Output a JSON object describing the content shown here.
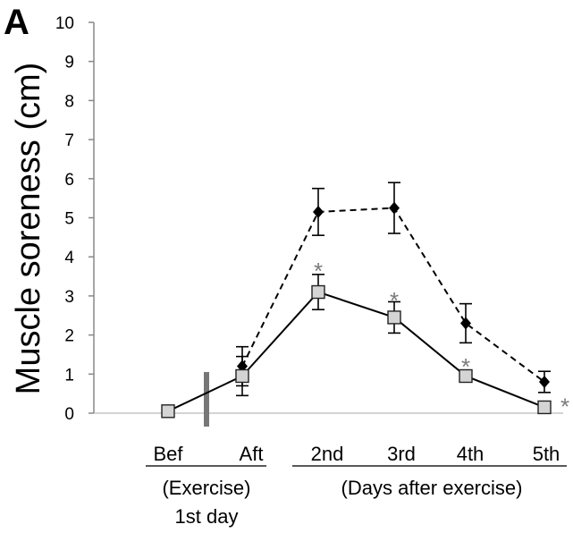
{
  "chart_data": {
    "type": "line",
    "panel_label": "A",
    "ylabel": "Muscle soreness (cm)",
    "ylim": [
      0,
      10
    ],
    "yticks": [
      "0",
      "1",
      "2",
      "3",
      "4",
      "5",
      "6",
      "7",
      "8",
      "9",
      "10"
    ],
    "categories": [
      "Bef",
      "Aft",
      "2nd",
      "3rd",
      "4th",
      "5th"
    ],
    "groups": [
      {
        "lines": [
          "(Exercise)",
          "1st day"
        ],
        "categories": [
          "Bef",
          "Aft"
        ]
      },
      {
        "lines": [
          "(Days after exercise)"
        ],
        "categories": [
          "2nd",
          "3rd",
          "4th",
          "5th"
        ]
      }
    ],
    "series": [
      {
        "name": "filled diamond (dashed)",
        "marker": "diamond",
        "line": "dashed",
        "color": "#000000",
        "values": [
          null,
          1.2,
          5.15,
          5.25,
          2.3,
          0.8
        ],
        "errors": [
          null,
          0.5,
          0.6,
          0.65,
          0.5,
          0.27
        ]
      },
      {
        "name": "open square (solid)",
        "marker": "square",
        "line": "solid",
        "color": "#000000",
        "values": [
          0.05,
          0.95,
          3.1,
          2.45,
          0.95,
          0.15
        ],
        "errors": [
          0.0,
          0.5,
          0.45,
          0.4,
          0.1,
          0.0
        ]
      }
    ],
    "annotations": [
      {
        "text": "*",
        "category": "2nd",
        "value": 3.75
      },
      {
        "text": "*",
        "category": "3rd",
        "value": 3.0
      },
      {
        "text": "*",
        "category": "4th",
        "value": 1.3
      },
      {
        "text": "*",
        "category": "5th",
        "value": 0.15,
        "side": "right"
      }
    ],
    "axis_break_between": [
      "Bef",
      "Aft"
    ]
  }
}
